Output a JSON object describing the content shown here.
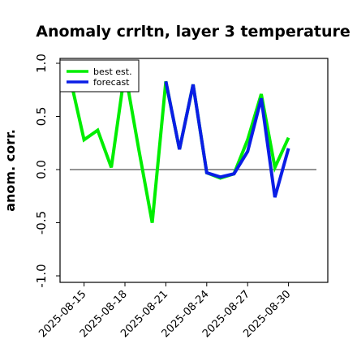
{
  "colors": {
    "best_est": "#00ee00",
    "forecast": "#0a1ee6",
    "zero_line": "#555555",
    "highlight_tick": "#228b22"
  },
  "chart_data": {
    "type": "line",
    "title": "Anomaly crrltn, layer 3 temperature",
    "xlabel": "",
    "ylabel": "anom. corr.",
    "ylim": [
      -1.0,
      1.0
    ],
    "yticks": [
      "-1.0",
      "-0.5",
      "0.0",
      "0.5",
      "1.0"
    ],
    "xticks": [
      "2025-08-15",
      "2025-08-18",
      "2025-08-21",
      "2025-08-24",
      "2025-08-27",
      "2025-08-30"
    ],
    "highlighted_xtick": "2025-08-21",
    "x": [
      "2025-08-13",
      "2025-08-14",
      "2025-08-15",
      "2025-08-16",
      "2025-08-17",
      "2025-08-18",
      "2025-08-19",
      "2025-08-20",
      "2025-08-21",
      "2025-08-22",
      "2025-08-23",
      "2025-08-24",
      "2025-08-25",
      "2025-08-26",
      "2025-08-27",
      "2025-08-28",
      "2025-08-29",
      "2025-08-30"
    ],
    "series": [
      {
        "name": "best est.",
        "color": "#00ee00",
        "values": [
          1.0,
          0.85,
          0.28,
          0.37,
          0.02,
          0.93,
          0.2,
          -0.5,
          0.83,
          0.19,
          0.8,
          -0.03,
          -0.08,
          -0.04,
          0.28,
          0.71,
          0.02,
          0.3
        ]
      },
      {
        "name": "forecast",
        "color": "#0a1ee6",
        "values": [
          null,
          null,
          null,
          null,
          null,
          null,
          null,
          null,
          0.83,
          0.19,
          0.8,
          -0.03,
          -0.07,
          -0.04,
          0.17,
          0.67,
          -0.26,
          0.2
        ]
      }
    ],
    "zero_line": true,
    "grid": false,
    "legend": "top-left"
  }
}
